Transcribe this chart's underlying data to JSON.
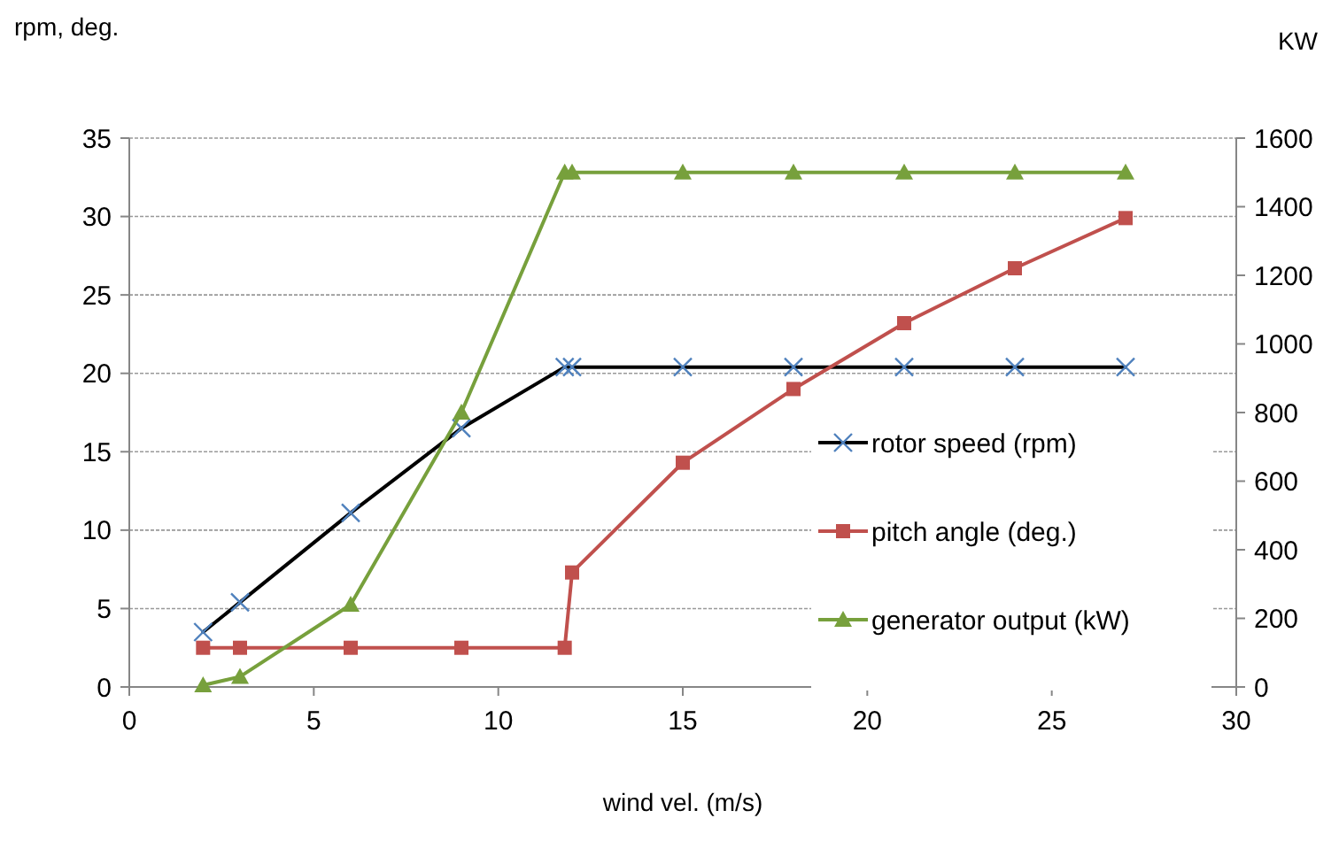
{
  "chart_data": {
    "type": "line",
    "xlabel": "wind vel. (m/s)",
    "ylabel": "rpm, deg.",
    "y2label": "KW",
    "xlim": [
      0,
      30
    ],
    "xticks": [
      0,
      5,
      10,
      15,
      20,
      25,
      30
    ],
    "ylim": [
      0,
      35
    ],
    "yticks": [
      0,
      5,
      10,
      15,
      20,
      25,
      30,
      35
    ],
    "y2lim": [
      0,
      1600
    ],
    "y2ticks": [
      0,
      200,
      400,
      600,
      800,
      1000,
      1200,
      1400,
      1600
    ],
    "grid": "y",
    "legend": "right",
    "line_style": "solid",
    "series": [
      {
        "name": "rotor speed (rpm)",
        "color": "#000000",
        "marker": "cross",
        "x": [
          2,
          3,
          6,
          9,
          11.8,
          12,
          15,
          18,
          21,
          24,
          27
        ],
        "values": [
          3.5,
          5.4,
          11.1,
          16.5,
          20.4,
          20.4,
          20.4,
          20.4,
          20.4,
          20.4,
          20.4
        ]
      },
      {
        "name": "pitch angle (deg.)",
        "color": "#c0504d",
        "marker": "square",
        "x": [
          2,
          3,
          6,
          9,
          11.8,
          12,
          15,
          18,
          21,
          24,
          27
        ],
        "values": [
          2.5,
          2.5,
          2.5,
          2.5,
          2.5,
          7.3,
          14.3,
          19.0,
          23.2,
          26.7,
          29.9
        ]
      },
      {
        "name": "generator output (kW)",
        "color": "#77a03c",
        "marker": "triangle",
        "axis": "y2",
        "x": [
          2,
          3,
          6,
          9,
          11.8,
          12,
          15,
          18,
          21,
          24,
          27
        ],
        "values": [
          5,
          30,
          240,
          800,
          1500,
          1500,
          1500,
          1500,
          1500,
          1500,
          1500
        ]
      }
    ]
  }
}
